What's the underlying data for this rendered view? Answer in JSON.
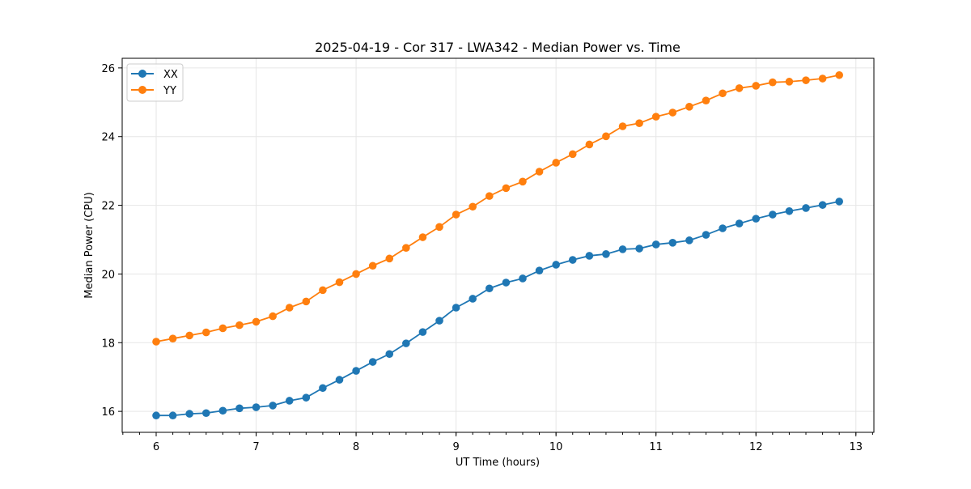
{
  "chart_data": {
    "type": "line",
    "title": "2025-04-19 - Cor 317 - LWA342 - Median Power vs. Time",
    "xlabel": "UT Time (hours)",
    "ylabel": "Median Power (CPU)",
    "xlim": [
      5.66,
      13.18
    ],
    "ylim": [
      15.39,
      26.28
    ],
    "xticks": [
      6,
      7,
      8,
      9,
      10,
      11,
      12,
      13
    ],
    "yticks": [
      16,
      18,
      20,
      22,
      24,
      26
    ],
    "grid": true,
    "legend_position": "top-left",
    "x_start": 6,
    "x_step_hours": 0.16667,
    "series": [
      {
        "name": "XX",
        "color": "#1f77b4",
        "values": [
          15.88,
          15.88,
          15.93,
          15.95,
          16.02,
          16.09,
          16.12,
          16.17,
          16.31,
          16.4,
          16.68,
          16.92,
          17.18,
          17.44,
          17.67,
          17.98,
          18.31,
          18.64,
          19.02,
          19.28,
          19.58,
          19.75,
          19.87,
          20.1,
          20.27,
          20.41,
          20.53,
          20.58,
          20.72,
          20.74,
          20.86,
          20.91,
          20.98,
          21.14,
          21.33,
          21.47,
          21.61,
          21.73,
          21.83,
          21.92,
          22.01,
          22.11
        ]
      },
      {
        "name": "YY",
        "color": "#ff7f0e",
        "values": [
          18.03,
          18.12,
          18.21,
          18.3,
          18.42,
          18.51,
          18.61,
          18.77,
          19.02,
          19.2,
          19.53,
          19.76,
          20.0,
          20.24,
          20.45,
          20.76,
          21.07,
          21.37,
          21.73,
          21.96,
          22.27,
          22.5,
          22.69,
          22.98,
          23.24,
          23.49,
          23.77,
          24.01,
          24.3,
          24.39,
          24.58,
          24.7,
          24.87,
          25.05,
          25.26,
          25.41,
          25.48,
          25.58,
          25.6,
          25.64,
          25.69,
          25.79
        ]
      }
    ]
  }
}
